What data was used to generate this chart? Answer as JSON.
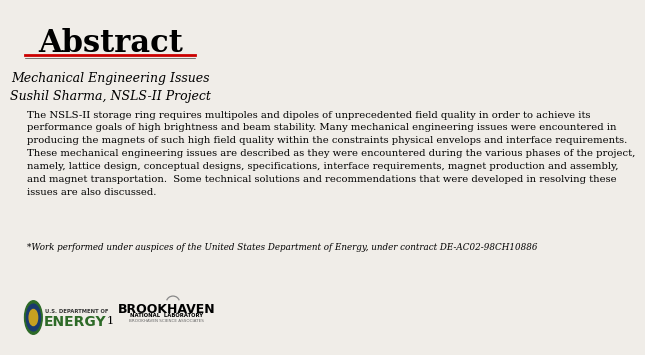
{
  "title": "Abstract",
  "subtitle1": "Mechanical Engineering Issues",
  "subtitle2": "Sushil Sharma, NSLS-II Project",
  "body_text": "The NSLS-II storage ring requires multipoles and dipoles of unprecedented field quality in order to achieve its\nperformance goals of high brightness and beam stability. Many mechanical engineering issues were encountered in\nproducing the magnets of such high field quality within the constraints physical envelops and interface requirements.\nThese mechanical engineering issues are described as they were encountered during the various phases of the project,\nnamely, lattice design, conceptual designs, specifications, interface requirements, magnet production and assembly,\nand magnet transportation.  Some technical solutions and recommendations that were developed in resolving these\nissues are also discussed.",
  "footnote": "*Work performed under auspices of the United States Department of Energy, under contract DE-AC02-98CH10886",
  "page_number": "1",
  "bg_color": "#f0ede8",
  "title_color": "#000000",
  "body_color": "#000000",
  "line_color_red": "#cc0000",
  "line_color_dark": "#444444",
  "title_fontsize": 22,
  "subtitle_fontsize": 9,
  "body_fontsize": 7.2,
  "footnote_fontsize": 6.3
}
